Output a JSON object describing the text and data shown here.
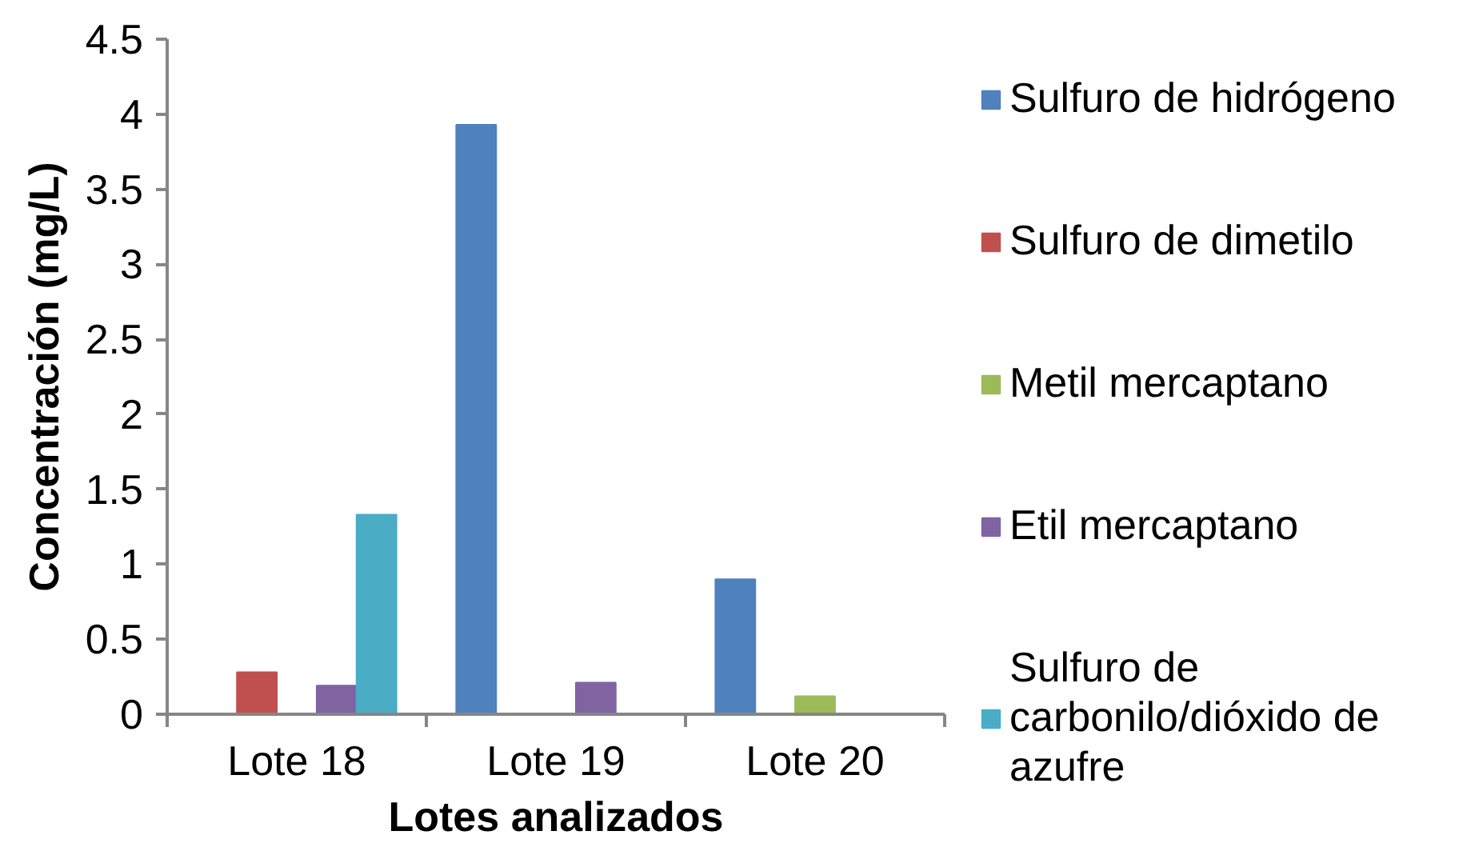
{
  "chart_data": {
    "type": "bar",
    "xlabel": "Lotes analizados",
    "ylabel": "Concentración (mg/L)",
    "categories": [
      "Lote 18",
      "Lote 19",
      "Lote 20"
    ],
    "series": [
      {
        "name": "Sulfuro de hidrógeno",
        "color": "#4f81bd",
        "values": [
          null,
          3.93,
          0.9
        ]
      },
      {
        "name": "Sulfuro de dimetilo",
        "color": "#c0504d",
        "values": [
          0.28,
          null,
          null
        ]
      },
      {
        "name": "Metil mercaptano",
        "color": "#9bbb59",
        "values": [
          null,
          null,
          0.12
        ]
      },
      {
        "name": "Etil mercaptano",
        "color": "#8064a2",
        "values": [
          0.19,
          0.21,
          null
        ]
      },
      {
        "name": "Sulfuro de carbonilo/dióxido de azufre",
        "color": "#4bacc6",
        "values": [
          1.33,
          null,
          null
        ]
      }
    ],
    "ylim": [
      0,
      4.5
    ],
    "yticks": [
      0,
      0.5,
      1,
      1.5,
      2,
      2.5,
      3,
      3.5,
      4,
      4.5
    ],
    "legend": "right"
  }
}
